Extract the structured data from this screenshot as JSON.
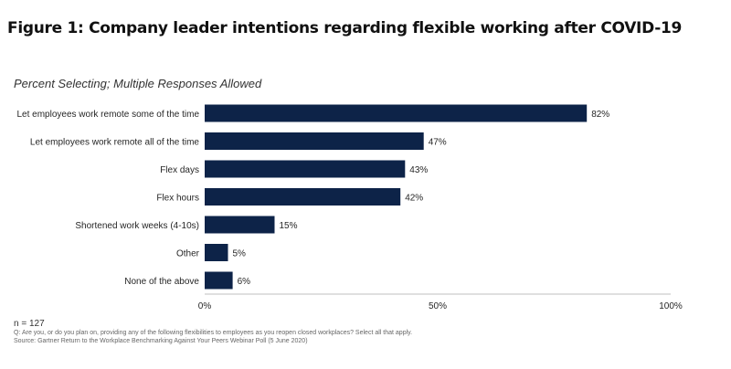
{
  "figure_title": "Figure 1: Company leader intentions regarding flexible working after COVID-19",
  "subtitle": "Percent Selecting; Multiple Responses Allowed",
  "footer": {
    "n": "n = 127",
    "question": "Q: Are you, or do you plan on, providing any of the following flexibilities to employees as you reopen closed workplaces? Select all that apply.",
    "source": "Source: Gartner Return to the Workplace Benchmarking Against Your Peers Webinar Poll (5 June 2020)"
  },
  "colors": {
    "bar": "#0d2348",
    "axis": "#bfbfbf"
  },
  "chart_data": {
    "type": "bar",
    "orientation": "horizontal",
    "title": "Figure 1: Company leader intentions regarding flexible working after COVID-19",
    "subtitle": "Percent Selecting; Multiple Responses Allowed",
    "categories": [
      "Let employees work remote some of the time",
      "Let employees work remote all of the time",
      "Flex days",
      "Flex hours",
      "Shortened work weeks (4-10s)",
      "Other",
      "None of the above"
    ],
    "values": [
      82,
      47,
      43,
      42,
      15,
      5,
      6
    ],
    "data_labels": [
      "82%",
      "47%",
      "43%",
      "42%",
      "15%",
      "5%",
      "6%"
    ],
    "xlim": [
      0,
      100
    ],
    "x_ticks": [
      0,
      50,
      100
    ],
    "x_tick_labels": [
      "0%",
      "50%",
      "100%"
    ],
    "grid": false,
    "legend": "none"
  }
}
